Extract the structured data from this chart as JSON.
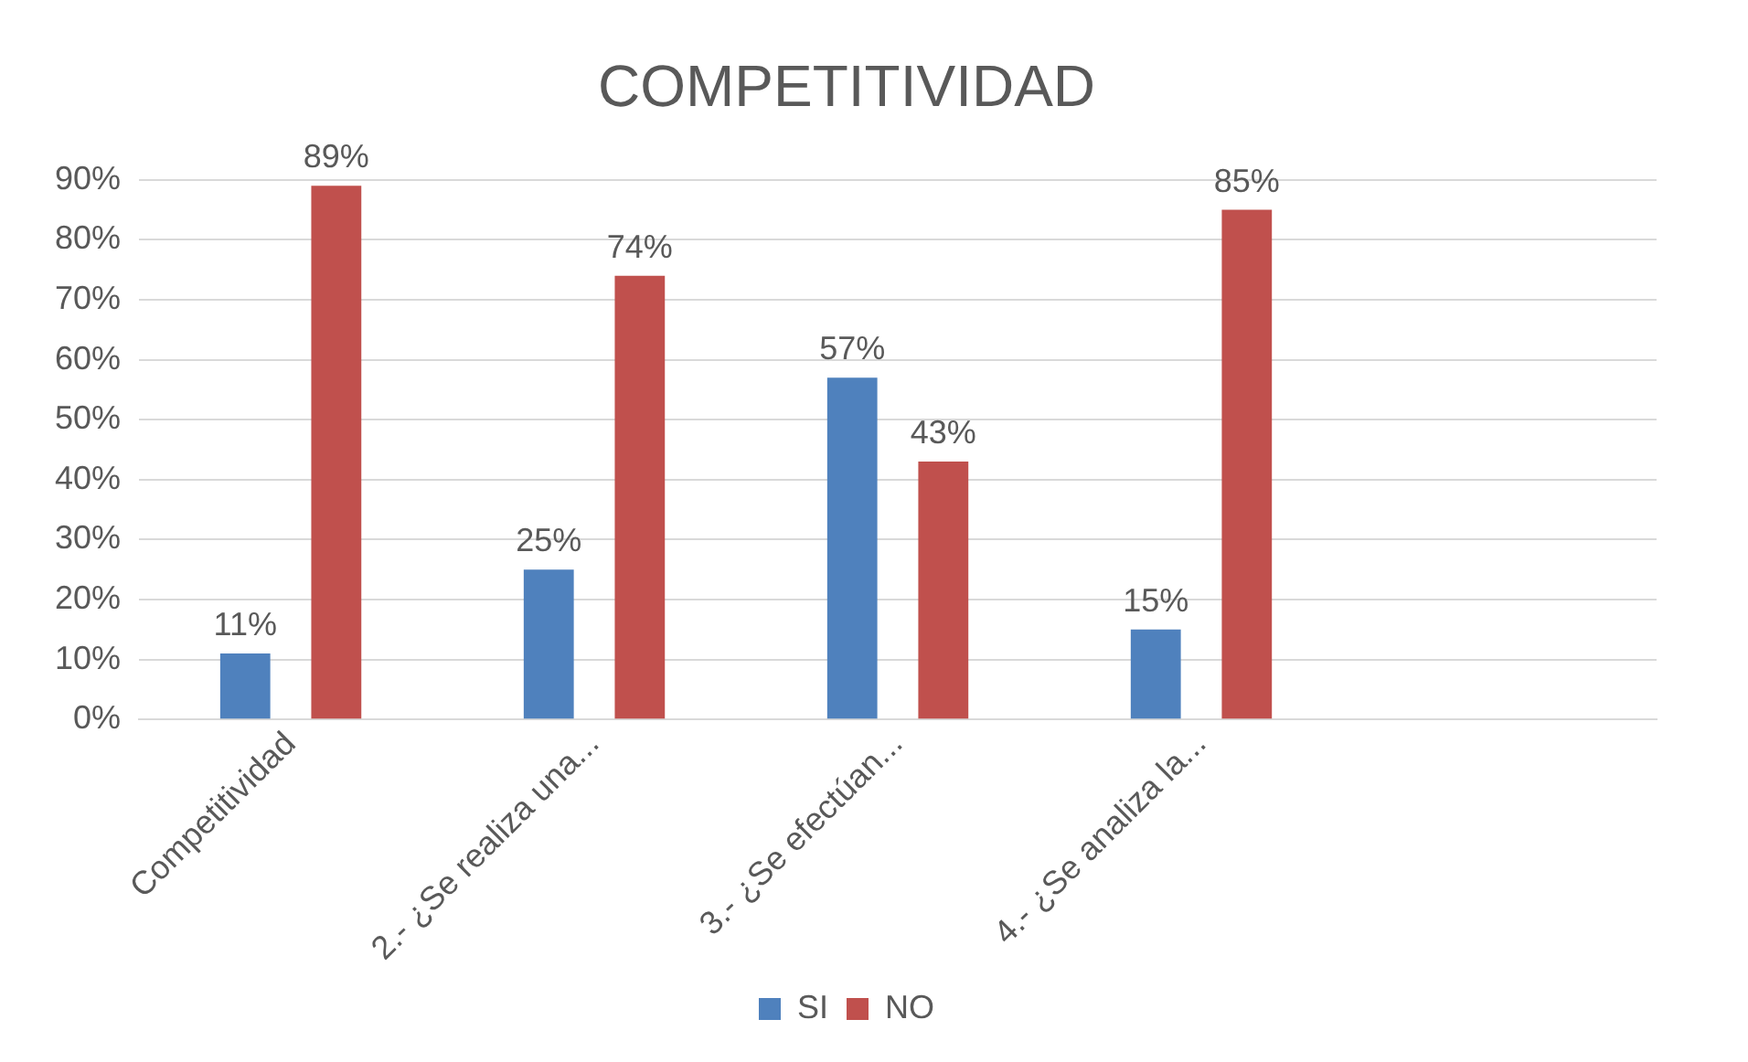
{
  "chart_data": {
    "type": "bar",
    "title": "COMPETITIVIDAD",
    "categories": [
      "Competitividad",
      "2.- ¿Se realiza una...",
      "3.- ¿Se efectúan...",
      "4.- ¿Se analiza la...",
      null
    ],
    "series": [
      {
        "name": "SI",
        "color": "#4f81bd",
        "values": [
          11,
          25,
          57,
          15,
          null
        ],
        "value_labels": [
          "11%",
          "25%",
          "57%",
          "15%",
          null
        ]
      },
      {
        "name": "NO",
        "color": "#c0504d",
        "values": [
          89,
          74,
          43,
          85,
          null
        ],
        "value_labels": [
          "89%",
          "74%",
          "43%",
          "85%",
          null
        ]
      }
    ],
    "ylim": [
      0,
      90
    ],
    "yticks": [
      {
        "value": 0,
        "label": "0%"
      },
      {
        "value": 10,
        "label": "10%"
      },
      {
        "value": 20,
        "label": "20%"
      },
      {
        "value": 30,
        "label": "30%"
      },
      {
        "value": 40,
        "label": "40%"
      },
      {
        "value": 50,
        "label": "50%"
      },
      {
        "value": 60,
        "label": "60%"
      },
      {
        "value": 70,
        "label": "70%"
      },
      {
        "value": 80,
        "label": "80%"
      },
      {
        "value": 90,
        "label": "90%"
      }
    ],
    "grid": "y",
    "legend": "bottom"
  }
}
